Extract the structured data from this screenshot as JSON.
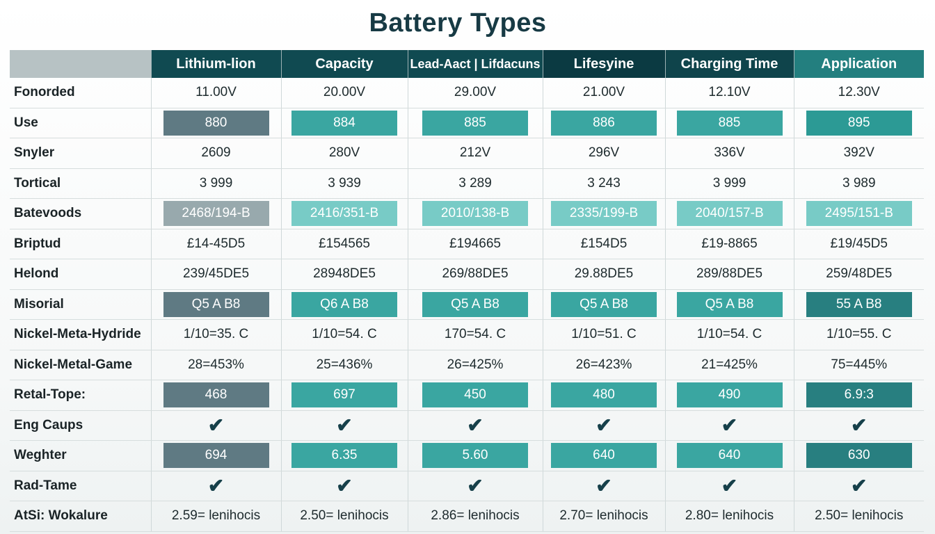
{
  "chart_data": {
    "type": "table",
    "title": "Battery Types",
    "columns": [
      "Lithium-lion",
      "Capacity",
      "Lead-Aact | Lifdacuns",
      "Lifesyine",
      "Charging Time",
      "Application"
    ],
    "rows": [
      {
        "label": "Fonorded",
        "style": "plain",
        "values": [
          "11.00V",
          "20.00V",
          "29.00V",
          "21.00V",
          "12.10V",
          "12.30V"
        ]
      },
      {
        "label": "Use",
        "style": "pill",
        "values": [
          "880",
          "884",
          "885",
          "886",
          "885",
          "895"
        ]
      },
      {
        "label": "Snyler",
        "style": "plain",
        "values": [
          "2609",
          "280V",
          "212V",
          "296V",
          "336V",
          "392V"
        ]
      },
      {
        "label": "Tortical",
        "style": "plain",
        "values": [
          "3 999",
          "3 939",
          "3 289",
          "3 243",
          "3 999",
          "3 989"
        ]
      },
      {
        "label": "Batevoods",
        "style": "pill-light",
        "values": [
          "2468/194-B",
          "2416/351-B",
          "2010/138-B",
          "2335/199-B",
          "2040/157-B",
          "2495/151-B"
        ]
      },
      {
        "label": "Briptud",
        "style": "plain",
        "values": [
          "£14-45D5",
          "£154565",
          "£194665",
          "£154D5",
          "£19-8865",
          "£19/45D5"
        ]
      },
      {
        "label": "Helond",
        "style": "plain",
        "values": [
          "239/45DE5",
          "28948DE5",
          "269/88DE5",
          "29.88DE5",
          "289/88DE5",
          "259/48DE5"
        ]
      },
      {
        "label": "Misorial",
        "style": "pill-darkend",
        "values": [
          "Q5 A B8",
          "Q6 A B8",
          "Q5 A B8",
          "Q5 A B8",
          "Q5 A B8",
          "55 A B8"
        ]
      },
      {
        "label": "Nickel-Meta-Hydride",
        "style": "plain",
        "values": [
          "1/10=35. C",
          "1/10=54. C",
          "170=54. C",
          "1/10=51. C",
          "1/10=54. C",
          "1/10=55. C"
        ]
      },
      {
        "label": "Nickel-Metal-Game",
        "style": "plain",
        "values": [
          "28=453%",
          "25=436%",
          "26=425%",
          "26=423%",
          "21=425%",
          "75=445%"
        ]
      },
      {
        "label": "Retal-Tope:",
        "style": "pill-darkend",
        "values": [
          "468",
          "697",
          "450",
          "480",
          "490",
          "6.9:3"
        ]
      },
      {
        "label": "Eng Caups",
        "style": "check",
        "values": [
          "✔",
          "✔",
          "✔",
          "✔",
          "✔",
          "✔"
        ]
      },
      {
        "label": "Weghter",
        "style": "pill-darkend",
        "values": [
          "694",
          "6.35",
          "5.60",
          "640",
          "640",
          "630"
        ]
      },
      {
        "label": "Rad-Tame",
        "style": "check",
        "values": [
          "✔",
          "✔",
          "✔",
          "✔",
          "✔",
          "✔"
        ]
      },
      {
        "label": "AtSi: Wokalure",
        "style": "plain",
        "values": [
          "2.59= lenihocis",
          "2.50= lenihocis",
          "2.86= lenihocis",
          "2.70= lenihocis",
          "2.80= lenihocis",
          "2.50= lenihocis"
        ]
      }
    ]
  },
  "colors": {
    "header_dark": "#104a51",
    "header_teal": "#237f7f",
    "pill_slate": "#5f7a83",
    "pill_teal": "#3aa6a1",
    "pill_light_teal": "#78cbc6"
  }
}
